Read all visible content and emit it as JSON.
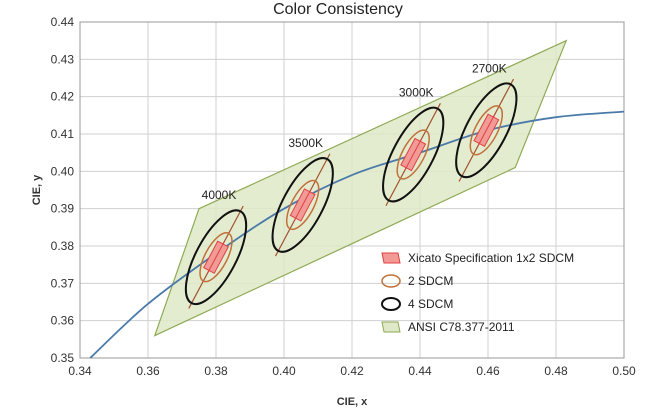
{
  "chart_data": {
    "type": "scatter",
    "title": "Color Consistency",
    "xlabel": "CIE, x",
    "ylabel": "CIE, y",
    "xlim": [
      0.34,
      0.5
    ],
    "ylim": [
      0.35,
      0.44
    ],
    "xticks": [
      "0.34",
      "0.36",
      "0.38",
      "0.40",
      "0.42",
      "0.44",
      "0.46",
      "0.48",
      "0.50"
    ],
    "yticks": [
      "0.35",
      "0.36",
      "0.37",
      "0.38",
      "0.39",
      "0.40",
      "0.41",
      "0.42",
      "0.43",
      "0.44"
    ],
    "grid": true,
    "legend_position": "lower-right",
    "colors": {
      "xicato": "#f29a96",
      "xicato_edge": "#e04040",
      "sdcm2": "#c0703a",
      "sdcm4": "#111111",
      "ansi_fill": "#dfe9c8",
      "ansi_edge": "#8faa55",
      "locus": "#4a7aaa",
      "isotherm": "#a0522d"
    },
    "locus": {
      "x": [
        0.343,
        0.36,
        0.38,
        0.4,
        0.42,
        0.44,
        0.46,
        0.48,
        0.5
      ],
      "y": [
        0.35,
        0.3645,
        0.378,
        0.39,
        0.399,
        0.405,
        0.411,
        0.4145,
        0.416
      ]
    },
    "ansi_region": {
      "x": [
        0.362,
        0.375,
        0.483,
        0.468
      ],
      "y": [
        0.356,
        0.39,
        0.435,
        0.401
      ]
    },
    "points": [
      {
        "label": "4000K",
        "x": 0.38,
        "y": 0.377
      },
      {
        "label": "3500K",
        "x": 0.4055,
        "y": 0.391
      },
      {
        "label": "3000K",
        "x": 0.438,
        "y": 0.4045
      },
      {
        "label": "2700K",
        "x": 0.4595,
        "y": 0.411
      }
    ],
    "legend": [
      {
        "key": "xicato",
        "label": "Xicato Specification 1x2 SDCM"
      },
      {
        "key": "sdcm2",
        "label": "2 SDCM"
      },
      {
        "key": "sdcm4",
        "label": "4 SDCM"
      },
      {
        "key": "ansi",
        "label": "ANSI C78.377-2011"
      }
    ]
  }
}
